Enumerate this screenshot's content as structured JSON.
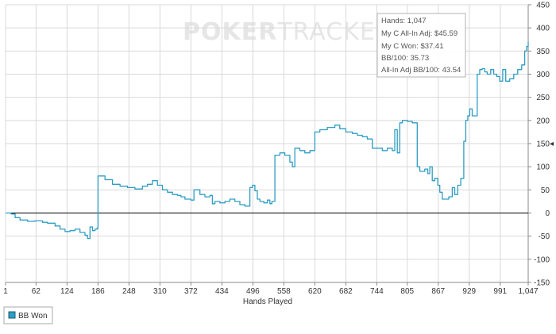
{
  "watermark": {
    "bold": "POKER",
    "light": "TRACKER"
  },
  "tooltip": {
    "lines": [
      "Hands: 1,047",
      "My C All-In Adj: $45.59",
      "My C Won: $37.41",
      "BB/100: 35.73",
      "All-In Adj BB/100: 43.54"
    ]
  },
  "legend": {
    "label": "BB Won"
  },
  "colors": {
    "series": "#2e9dc4",
    "grid": "#d9d9d9",
    "zero_line": "#000000",
    "axis": "#888888"
  },
  "chart_data": {
    "type": "line",
    "title": "",
    "xlabel": "Hands Played",
    "ylabel": "",
    "xlim": [
      1,
      1047
    ],
    "ylim": [
      -150,
      450
    ],
    "grid": true,
    "x_ticks": [
      "1",
      "62",
      "124",
      "186",
      "248",
      "310",
      "372",
      "434",
      "496",
      "558",
      "620",
      "682",
      "744",
      "805",
      "867",
      "929",
      "991",
      "1,047"
    ],
    "y_ticks": [
      "450",
      "400",
      "350",
      "300",
      "250",
      "200",
      "150",
      "100",
      "50",
      "0",
      "-50",
      "-100",
      "-150"
    ],
    "series": [
      {
        "name": "BB Won",
        "x": [
          1,
          12,
          20,
          30,
          45,
          60,
          75,
          85,
          100,
          110,
          120,
          130,
          140,
          150,
          160,
          165,
          170,
          175,
          180,
          184,
          186,
          200,
          215,
          230,
          245,
          260,
          275,
          285,
          295,
          305,
          315,
          325,
          335,
          345,
          352,
          360,
          372,
          378,
          390,
          400,
          410,
          415,
          420,
          430,
          440,
          450,
          460,
          470,
          480,
          490,
          495,
          500,
          505,
          510,
          518,
          525,
          530,
          534,
          540,
          550,
          560,
          570,
          575,
          580,
          590,
          600,
          610,
          620,
          630,
          645,
          660,
          670,
          682,
          695,
          705,
          715,
          725,
          735,
          744,
          755,
          765,
          775,
          780,
          785,
          790,
          795,
          805,
          815,
          825,
          830,
          840,
          846,
          850,
          855,
          860,
          866,
          870,
          875,
          880,
          888,
          895,
          900,
          906,
          912,
          918,
          922,
          926,
          930,
          935,
          940,
          945,
          950,
          955,
          960,
          965,
          972,
          978,
          984,
          990,
          996,
          1002,
          1010,
          1018,
          1026,
          1034,
          1040,
          1044,
          1047
        ],
        "y": [
          0,
          -2,
          -10,
          -15,
          -18,
          -17,
          -20,
          -22,
          -28,
          -35,
          -40,
          -38,
          -35,
          -42,
          -48,
          -55,
          -30,
          -38,
          -35,
          -33,
          80,
          72,
          62,
          58,
          55,
          52,
          58,
          62,
          70,
          60,
          50,
          45,
          40,
          38,
          35,
          30,
          28,
          50,
          40,
          35,
          38,
          20,
          25,
          22,
          25,
          30,
          25,
          18,
          15,
          55,
          60,
          48,
          30,
          25,
          22,
          28,
          20,
          25,
          125,
          130,
          125,
          110,
          100,
          140,
          135,
          130,
          135,
          175,
          180,
          185,
          190,
          182,
          175,
          172,
          168,
          165,
          160,
          140,
          140,
          135,
          140,
          135,
          180,
          130,
          195,
          200,
          198,
          195,
          100,
          90,
          95,
          85,
          100,
          70,
          75,
          60,
          45,
          30,
          30,
          35,
          55,
          40,
          60,
          75,
          155,
          200,
          210,
          225,
          210,
          210,
          300,
          310,
          312,
          305,
          300,
          310,
          300,
          295,
          285,
          310,
          285,
          290,
          300,
          310,
          320,
          350,
          360,
          370
        ]
      }
    ]
  }
}
